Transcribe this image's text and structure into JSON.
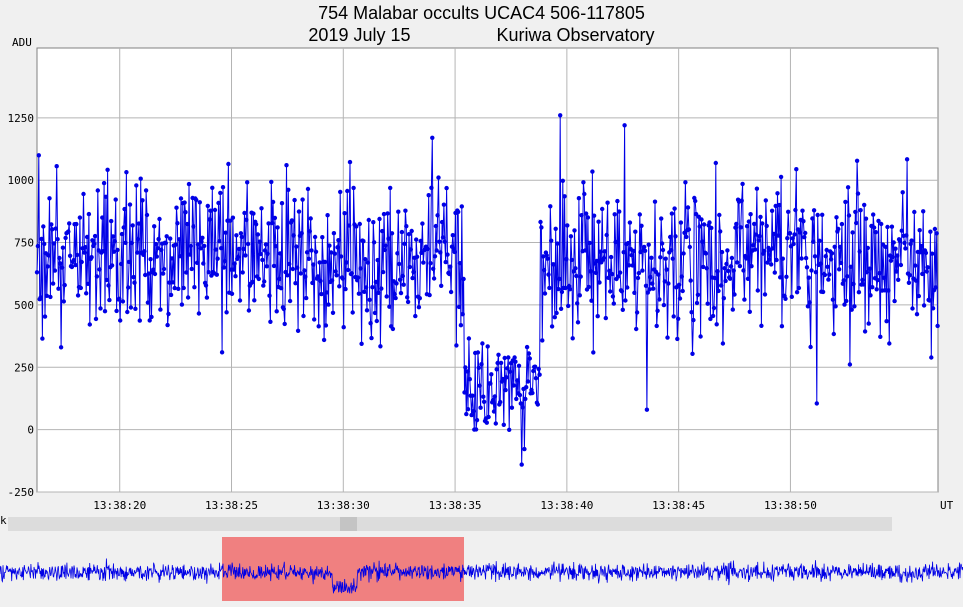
{
  "title": {
    "line1": "754 Malabar occults UCAC4 506-117805",
    "line2_date": "2019 July 15",
    "line2_site": "Kuriwa Observatory"
  },
  "scrollbar": {
    "left_mark": "k"
  },
  "colors": {
    "series": "#0000e6",
    "grid": "#b4b4b4",
    "plot_bg": "#ffffff",
    "overview_highlight": "#f08080"
  },
  "chart_data": {
    "type": "line",
    "title": "754 Malabar occults UCAC4 506-117805",
    "xlabel": "UT",
    "ylabel": "ADU",
    "xlim": [
      "13:38:16.3",
      "13:38:56.6"
    ],
    "ylim": [
      -250,
      1530
    ],
    "y_ticks": [
      -250,
      0,
      250,
      500,
      750,
      1000,
      1250
    ],
    "y_tick_labels": [
      "-250",
      "0",
      "250",
      "500",
      "750",
      "1000",
      "1250"
    ],
    "x_ticks": [
      "13:38:20",
      "13:38:25",
      "13:38:30",
      "13:38:35",
      "13:38:40",
      "13:38:45",
      "13:38:50"
    ],
    "x_tick_labels": [
      "13:38:20",
      "13:38:25",
      "13:38:30",
      "13:38:35",
      "13:38:40",
      "13:38:45",
      "13:38:50"
    ],
    "grid": true,
    "legend": "none",
    "series": [
      {
        "sampling_interval_s": 0.04,
        "start_time": "13:38:16.3",
        "segments": [
          {
            "from": "13:38:16.3",
            "to": "13:38:35.4",
            "mean_adu": 700,
            "scatter_adu": 150
          },
          {
            "from": "13:38:35.4",
            "to": "13:38:38.8",
            "mean_adu": 180,
            "scatter_adu": 90
          },
          {
            "from": "13:38:38.8",
            "to": "13:38:56.6",
            "mean_adu": 680,
            "scatter_adu": 150
          }
        ],
        "notable_points": [
          {
            "x": "13:38:16.4",
            "y": 1100
          },
          {
            "x": "13:38:17.4",
            "y": 330
          },
          {
            "x": "13:38:34.0",
            "y": 1170
          },
          {
            "x": "13:38:38.0",
            "y": -140
          },
          {
            "x": "13:38:39.7",
            "y": 1260
          },
          {
            "x": "13:38:42.6",
            "y": 1220
          },
          {
            "x": "13:38:43.6",
            "y": 80
          },
          {
            "x": "13:38:51.2",
            "y": 105
          }
        ]
      }
    ]
  }
}
